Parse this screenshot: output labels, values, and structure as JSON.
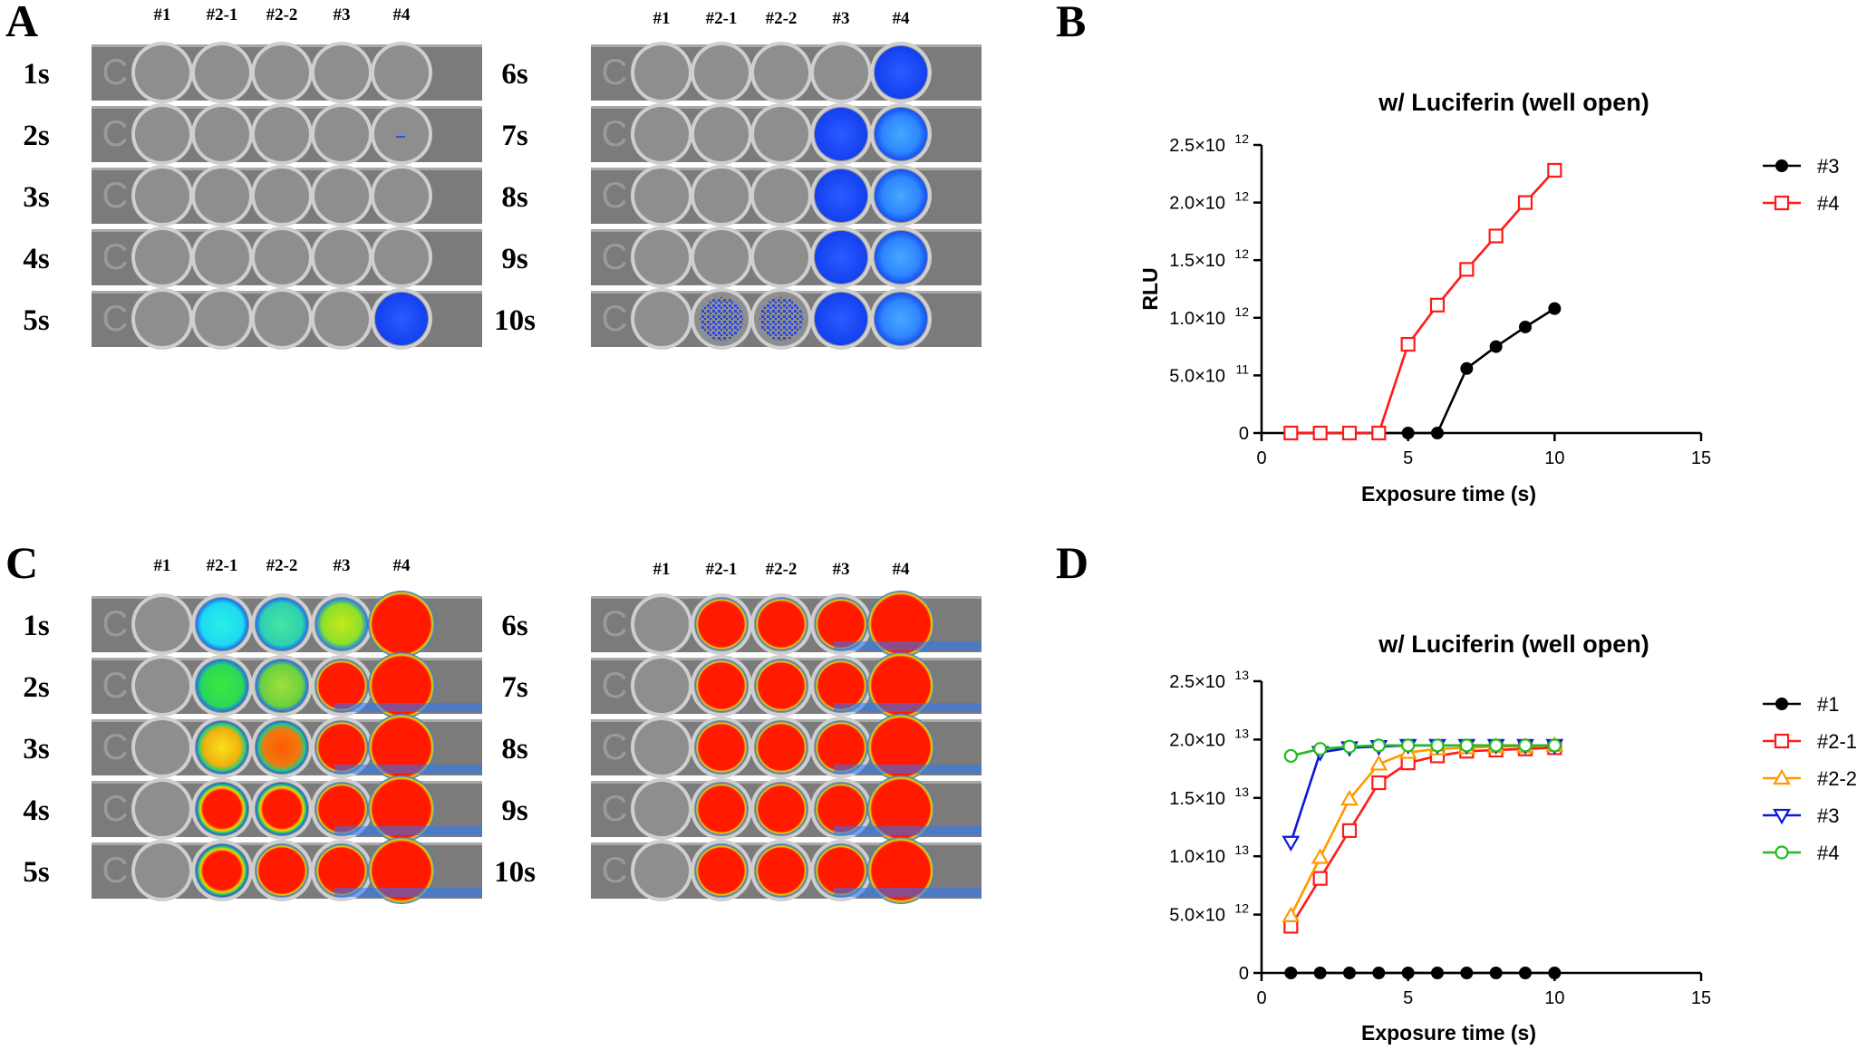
{
  "figure": {
    "panel_letters": [
      "A",
      "B",
      "C",
      "D"
    ]
  },
  "colors": {
    "plate_gray": "#7d7d7d",
    "well_fill": "#8e8e8e",
    "bioluminescence_blue": "#1a55ff",
    "saturated_red": "#ff1a00"
  },
  "plate_panels": [
    {
      "letter": "A",
      "column_labels": [
        "#1",
        "#2-1",
        "#2-2",
        "#3",
        "#4"
      ],
      "groups": [
        {
          "rows": [
            {
              "label": "1s",
              "wells": [
                "none",
                "none",
                "none",
                "none",
                "none"
              ]
            },
            {
              "label": "2s",
              "wells": [
                "none",
                "none",
                "none",
                "none",
                "speck"
              ]
            },
            {
              "label": "3s",
              "wells": [
                "none",
                "none",
                "none",
                "none",
                "none"
              ]
            },
            {
              "label": "4s",
              "wells": [
                "none",
                "none",
                "none",
                "none",
                "none"
              ]
            },
            {
              "label": "5s",
              "wells": [
                "none",
                "none",
                "none",
                "none",
                "blue"
              ]
            }
          ]
        },
        {
          "rows": [
            {
              "label": "6s",
              "wells": [
                "none",
                "none",
                "none",
                "none",
                "blue"
              ]
            },
            {
              "label": "7s",
              "wells": [
                "none",
                "none",
                "none",
                "blue",
                "lightblue"
              ]
            },
            {
              "label": "8s",
              "wells": [
                "none",
                "none",
                "none",
                "blue",
                "lightblue"
              ]
            },
            {
              "label": "9s",
              "wells": [
                "none",
                "none",
                "none",
                "blue",
                "lightblue"
              ]
            },
            {
              "label": "10s",
              "wells": [
                "none",
                "speckle",
                "speckle",
                "blue",
                "lightblue"
              ]
            }
          ]
        }
      ]
    },
    {
      "letter": "C",
      "column_labels": [
        "#1",
        "#2-1",
        "#2-2",
        "#3",
        "#4"
      ],
      "groups": [
        {
          "rows": [
            {
              "label": "1s",
              "wells": [
                "none",
                "cyan",
                "teal",
                "lime",
                "red"
              ]
            },
            {
              "label": "2s",
              "wells": [
                "none",
                "green",
                "yellowgreen",
                "red",
                "red"
              ]
            },
            {
              "label": "3s",
              "wells": [
                "none",
                "yellow",
                "orange",
                "red",
                "red"
              ]
            },
            {
              "label": "4s",
              "wells": [
                "none",
                "redring",
                "redring",
                "red",
                "red"
              ]
            },
            {
              "label": "5s",
              "wells": [
                "none",
                "redring",
                "red",
                "red",
                "red"
              ]
            }
          ]
        },
        {
          "rows": [
            {
              "label": "6s",
              "wells": [
                "none",
                "red",
                "red",
                "red",
                "red"
              ]
            },
            {
              "label": "7s",
              "wells": [
                "none",
                "red",
                "red",
                "red",
                "red"
              ]
            },
            {
              "label": "8s",
              "wells": [
                "none",
                "red",
                "red",
                "red",
                "red"
              ]
            },
            {
              "label": "9s",
              "wells": [
                "none",
                "red",
                "red",
                "red",
                "red"
              ]
            },
            {
              "label": "10s",
              "wells": [
                "none",
                "red",
                "red",
                "red",
                "red"
              ]
            }
          ]
        }
      ]
    }
  ],
  "chart_data": [
    {
      "panel": "B",
      "type": "line",
      "title": "w/ Luciferin (well open)",
      "xlabel": "Exposure time (s)",
      "ylabel": "RLU",
      "xlim": [
        0,
        15
      ],
      "ylim": [
        0,
        2500000000000
      ],
      "x_ticks": [
        0,
        5,
        10,
        15
      ],
      "x_tick_labels": [
        "0",
        "5",
        "10",
        "15"
      ],
      "y_ticks": [
        0,
        500000000000,
        1000000000000,
        1500000000000,
        2000000000000,
        2500000000000
      ],
      "y_tick_labels": [
        {
          "mant": "0",
          "exp": ""
        },
        {
          "mant": "5.0×10",
          "exp": "11"
        },
        {
          "mant": "1.0×10",
          "exp": "12"
        },
        {
          "mant": "1.5×10",
          "exp": "12"
        },
        {
          "mant": "2.0×10",
          "exp": "12"
        },
        {
          "mant": "2.5×10",
          "exp": "12"
        }
      ],
      "grid": false,
      "legend_position": "right",
      "series": [
        {
          "name": "#3",
          "color": "#000000",
          "marker": "circle-filled",
          "x": [
            1,
            2,
            3,
            4,
            5,
            6,
            7,
            8,
            9,
            10
          ],
          "y": [
            0,
            0,
            0,
            0,
            0,
            0,
            560000000000,
            750000000000,
            920000000000,
            1080000000000
          ]
        },
        {
          "name": "#4",
          "color": "#ff1a1a",
          "marker": "square-open",
          "x": [
            1,
            2,
            3,
            4,
            5,
            6,
            7,
            8,
            9,
            10
          ],
          "y": [
            0,
            0,
            0,
            0,
            770000000000,
            1110000000000,
            1420000000000,
            1710000000000,
            2000000000000,
            2280000000000
          ]
        }
      ]
    },
    {
      "panel": "D",
      "type": "line",
      "title": "w/ Luciferin (well open)",
      "xlabel": "Exposure time (s)",
      "ylabel": "",
      "xlim": [
        0,
        15
      ],
      "ylim": [
        0,
        25000000000000
      ],
      "x_ticks": [
        0,
        5,
        10,
        15
      ],
      "x_tick_labels": [
        "0",
        "5",
        "10",
        "15"
      ],
      "y_ticks": [
        0,
        5000000000000,
        10000000000000,
        15000000000000,
        20000000000000,
        25000000000000
      ],
      "y_tick_labels": [
        {
          "mant": "0",
          "exp": ""
        },
        {
          "mant": "5.0×10",
          "exp": "12"
        },
        {
          "mant": "1.0×10",
          "exp": "13"
        },
        {
          "mant": "1.5×10",
          "exp": "13"
        },
        {
          "mant": "2.0×10",
          "exp": "13"
        },
        {
          "mant": "2.5×10",
          "exp": "13"
        }
      ],
      "grid": false,
      "legend_position": "right",
      "series": [
        {
          "name": "#1",
          "color": "#000000",
          "marker": "circle-filled",
          "x": [
            1,
            2,
            3,
            4,
            5,
            6,
            7,
            8,
            9,
            10
          ],
          "y": [
            0,
            0,
            0,
            0,
            0,
            0,
            0,
            0,
            0,
            0
          ]
        },
        {
          "name": "#2-1",
          "color": "#ff1a1a",
          "marker": "square-open",
          "x": [
            1,
            2,
            3,
            4,
            5,
            6,
            7,
            8,
            9,
            10
          ],
          "y": [
            4000000000000,
            8100000000000,
            12200000000000,
            16300000000000,
            18000000000000,
            18600000000000,
            19000000000000,
            19100000000000,
            19200000000000,
            19300000000000
          ]
        },
        {
          "name": "#2-2",
          "color": "#ff9900",
          "marker": "triangle-up-open",
          "x": [
            1,
            2,
            3,
            4,
            5,
            6,
            7,
            8,
            9,
            10
          ],
          "y": [
            4900000000000,
            9900000000000,
            14900000000000,
            17900000000000,
            18900000000000,
            19200000000000,
            19300000000000,
            19400000000000,
            19400000000000,
            19500000000000
          ]
        },
        {
          "name": "#3",
          "color": "#0a1ad6",
          "marker": "triangle-down-open",
          "x": [
            1,
            2,
            3,
            4,
            5,
            6,
            7,
            8,
            9,
            10
          ],
          "y": [
            11200000000000,
            18900000000000,
            19300000000000,
            19400000000000,
            19500000000000,
            19500000000000,
            19500000000000,
            19500000000000,
            19500000000000,
            19500000000000
          ]
        },
        {
          "name": "#4",
          "color": "#22bb22",
          "marker": "circle-open",
          "x": [
            1,
            2,
            3,
            4,
            5,
            6,
            7,
            8,
            9,
            10
          ],
          "y": [
            18600000000000,
            19200000000000,
            19400000000000,
            19500000000000,
            19500000000000,
            19500000000000,
            19500000000000,
            19500000000000,
            19500000000000,
            19500000000000
          ]
        }
      ]
    }
  ]
}
